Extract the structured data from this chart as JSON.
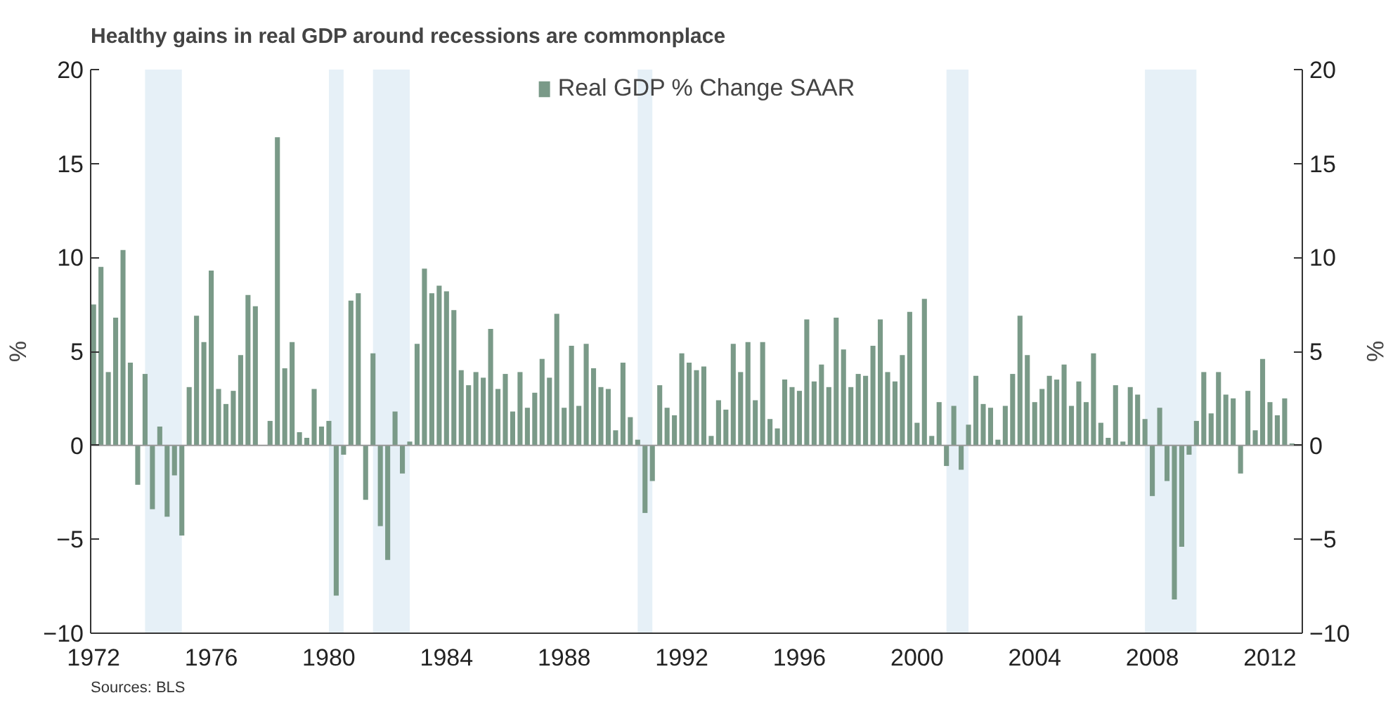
{
  "chart_data": {
    "type": "bar",
    "title": "Healthy gains in real GDP around recessions are commonplace",
    "x": [
      1972,
      1972.25,
      1972.5,
      1972.75,
      1973,
      1973.25,
      1973.5,
      1973.75,
      1974,
      1974.25,
      1974.5,
      1974.75,
      1975,
      1975.25,
      1975.5,
      1975.75,
      1976,
      1976.25,
      1976.5,
      1976.75,
      1977,
      1977.25,
      1977.5,
      1977.75,
      1978,
      1978.25,
      1978.5,
      1978.75,
      1979,
      1979.25,
      1979.5,
      1979.75,
      1980,
      1980.25,
      1980.5,
      1980.75,
      1981,
      1981.25,
      1981.5,
      1981.75,
      1982,
      1982.25,
      1982.5,
      1982.75,
      1983,
      1983.25,
      1983.5,
      1983.75,
      1984,
      1984.25,
      1984.5,
      1984.75,
      1985,
      1985.25,
      1985.5,
      1985.75,
      1986,
      1986.25,
      1986.5,
      1986.75,
      1987,
      1987.25,
      1987.5,
      1987.75,
      1988,
      1988.25,
      1988.5,
      1988.75,
      1989,
      1989.25,
      1989.5,
      1989.75,
      1990,
      1990.25,
      1990.5,
      1990.75,
      1991,
      1991.25,
      1991.5,
      1991.75,
      1992,
      1992.25,
      1992.5,
      1992.75,
      1993,
      1993.25,
      1993.5,
      1993.75,
      1994,
      1994.25,
      1994.5,
      1994.75,
      1995,
      1995.25,
      1995.5,
      1995.75,
      1996,
      1996.25,
      1996.5,
      1996.75,
      1997,
      1997.25,
      1997.5,
      1997.75,
      1998,
      1998.25,
      1998.5,
      1998.75,
      1999,
      1999.25,
      1999.5,
      1999.75,
      2000,
      2000.25,
      2000.5,
      2000.75,
      2001,
      2001.25,
      2001.5,
      2001.75,
      2002,
      2002.25,
      2002.5,
      2002.75,
      2003,
      2003.25,
      2003.5,
      2003.75,
      2004,
      2004.25,
      2004.5,
      2004.75,
      2005,
      2005.25,
      2005.5,
      2005.75,
      2006,
      2006.25,
      2006.5,
      2006.75,
      2007,
      2007.25,
      2007.5,
      2007.75,
      2008,
      2008.25,
      2008.5,
      2008.75,
      2009,
      2009.25,
      2009.5,
      2009.75,
      2010,
      2010.25,
      2010.5,
      2010.75,
      2011,
      2011.25,
      2011.5,
      2011.75,
      2012,
      2012.25,
      2012.5,
      2012.75
    ],
    "series": [
      {
        "name": "Real GDP % Change SAAR",
        "color": "#7a9a88",
        "values": [
          7.5,
          9.5,
          3.9,
          6.8,
          10.4,
          4.4,
          -2.1,
          3.8,
          -3.4,
          1.0,
          -3.8,
          -1.6,
          -4.8,
          3.1,
          6.9,
          5.5,
          9.3,
          3.0,
          2.2,
          2.9,
          4.8,
          8.0,
          7.4,
          0.0,
          1.3,
          16.4,
          4.1,
          5.5,
          0.7,
          0.4,
          3.0,
          1.0,
          1.3,
          -8.0,
          -0.5,
          7.7,
          8.1,
          -2.9,
          4.9,
          -4.3,
          -6.1,
          1.8,
          -1.5,
          0.2,
          5.4,
          9.4,
          8.1,
          8.5,
          8.2,
          7.2,
          4.0,
          3.2,
          3.9,
          3.6,
          6.2,
          3.0,
          3.8,
          1.8,
          3.9,
          2.0,
          2.8,
          4.6,
          3.6,
          7.0,
          2.0,
          5.3,
          2.1,
          5.4,
          4.1,
          3.1,
          3.0,
          0.8,
          4.4,
          1.5,
          0.3,
          -3.6,
          -1.9,
          3.2,
          2.0,
          1.6,
          4.9,
          4.4,
          4.0,
          4.2,
          0.5,
          2.4,
          1.9,
          5.4,
          3.9,
          5.5,
          2.4,
          5.5,
          1.4,
          0.9,
          3.5,
          3.1,
          2.9,
          6.7,
          3.4,
          4.3,
          3.1,
          6.8,
          5.1,
          3.1,
          3.8,
          3.7,
          5.3,
          6.7,
          3.9,
          3.4,
          4.8,
          7.1,
          1.2,
          7.8,
          0.5,
          2.3,
          -1.1,
          2.1,
          -1.3,
          1.1,
          3.7,
          2.2,
          2.0,
          0.3,
          2.1,
          3.8,
          6.9,
          4.8,
          2.3,
          3.0,
          3.7,
          3.5,
          4.3,
          2.1,
          3.4,
          2.3,
          4.9,
          1.2,
          0.4,
          3.2,
          0.2,
          3.1,
          2.7,
          1.4,
          -2.7,
          2.0,
          -1.9,
          -8.2,
          -5.4,
          -0.5,
          1.3,
          3.9,
          1.7,
          3.9,
          2.7,
          2.5,
          -1.5,
          2.9,
          0.8,
          4.6,
          2.3,
          1.6,
          2.5,
          0.1
        ]
      }
    ],
    "ylabel": "%",
    "y2label": "%",
    "xlim": [
      1971.9,
      2013.1
    ],
    "xticks": [
      1972,
      1976,
      1980,
      1984,
      1988,
      1992,
      1996,
      2000,
      2004,
      2008,
      2012
    ],
    "ylim": [
      -10,
      20
    ],
    "yticks": [
      -10,
      -5,
      0,
      5,
      10,
      15,
      20
    ],
    "y2lim": [
      -10,
      20
    ],
    "y2ticks": [
      -10,
      -5,
      0,
      5,
      10,
      15,
      20
    ],
    "bands": [
      {
        "axis": "x",
        "from": 1973.75,
        "to": 1975.0,
        "color": "#e6f0f7"
      },
      {
        "axis": "x",
        "from": 1980.0,
        "to": 1980.5,
        "color": "#e6f0f7"
      },
      {
        "axis": "x",
        "from": 1981.5,
        "to": 1982.75,
        "color": "#e6f0f7"
      },
      {
        "axis": "x",
        "from": 1990.5,
        "to": 1991.0,
        "color": "#e6f0f7"
      },
      {
        "axis": "x",
        "from": 2001.0,
        "to": 2001.75,
        "color": "#e6f0f7"
      },
      {
        "axis": "x",
        "from": 2007.75,
        "to": 2009.5,
        "color": "#e6f0f7"
      }
    ],
    "legend": "top",
    "annotations": [
      "Sources: BLS"
    ]
  }
}
